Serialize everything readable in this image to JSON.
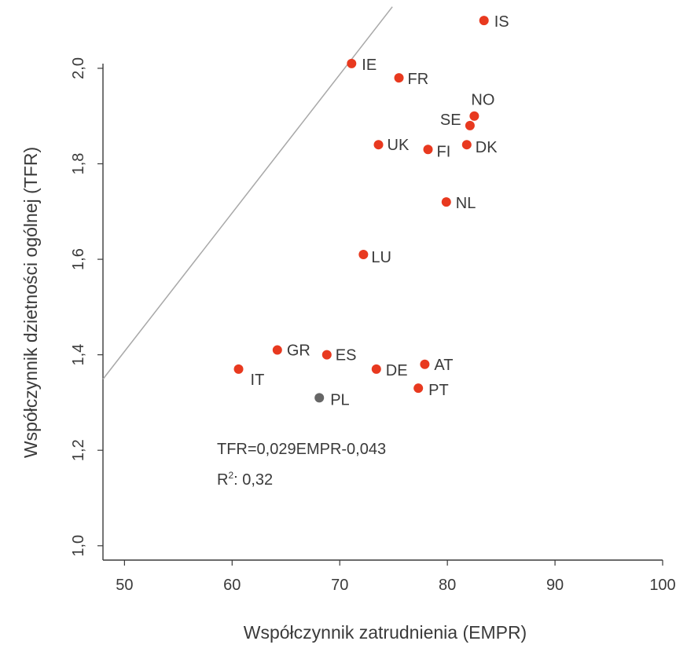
{
  "chart_data": {
    "type": "scatter",
    "xlabel": "Współczynnik zatrudnienia (EMPR)",
    "ylabel": "Współczynnik dzietności ogólnej (TFR)",
    "xlim": [
      48,
      100
    ],
    "ylim": [
      0.97,
      2.12
    ],
    "x_ticks": [
      50,
      60,
      70,
      80,
      90,
      100
    ],
    "x_tick_labels": [
      "50",
      "60",
      "70",
      "80",
      "90",
      "100"
    ],
    "y_ticks": [
      1.0,
      1.2,
      1.4,
      1.6,
      1.8,
      2.0
    ],
    "y_tick_labels": [
      "1,0",
      "1,2",
      "1,4",
      "1,6",
      "1,8",
      "2,0"
    ],
    "grid": false,
    "colors": {
      "highlight": "#e8391f",
      "other": "#666666",
      "line": "#a8a8a8",
      "text": "#3a3a3a"
    },
    "points": [
      {
        "label": "IS",
        "x": 83.4,
        "y": 2.1,
        "color": "#e8391f"
      },
      {
        "label": "IE",
        "x": 71.1,
        "y": 2.01,
        "color": "#e8391f"
      },
      {
        "label": "FR",
        "x": 75.5,
        "y": 1.98,
        "color": "#e8391f"
      },
      {
        "label": "NO",
        "x": 82.5,
        "y": 1.9,
        "color": "#e8391f"
      },
      {
        "label": "SE",
        "x": 82.1,
        "y": 1.88,
        "color": "#e8391f"
      },
      {
        "label": "UK",
        "x": 73.6,
        "y": 1.84,
        "color": "#e8391f"
      },
      {
        "label": "FI",
        "x": 78.2,
        "y": 1.83,
        "color": "#e8391f"
      },
      {
        "label": "DK",
        "x": 81.8,
        "y": 1.84,
        "color": "#e8391f"
      },
      {
        "label": "NL",
        "x": 79.9,
        "y": 1.72,
        "color": "#e8391f"
      },
      {
        "label": "LU",
        "x": 72.2,
        "y": 1.61,
        "color": "#e8391f"
      },
      {
        "label": "GR",
        "x": 64.2,
        "y": 1.41,
        "color": "#e8391f"
      },
      {
        "label": "ES",
        "x": 68.8,
        "y": 1.4,
        "color": "#e8391f"
      },
      {
        "label": "DE",
        "x": 73.4,
        "y": 1.37,
        "color": "#e8391f"
      },
      {
        "label": "AT",
        "x": 77.9,
        "y": 1.38,
        "color": "#e8391f"
      },
      {
        "label": "IT",
        "x": 60.6,
        "y": 1.37,
        "color": "#e8391f"
      },
      {
        "label": "PT",
        "x": 77.3,
        "y": 1.33,
        "color": "#e8391f"
      },
      {
        "label": "PL",
        "x": 68.1,
        "y": 1.31,
        "color": "#666666"
      }
    ],
    "regression": {
      "slope": 0.029,
      "intercept": -0.043
    },
    "annotations": {
      "equation": "TFR=0,029EMPR-0,043",
      "r2_prefix": "R",
      "r2_sup": "2",
      "r2_value": ": 0,32"
    }
  }
}
